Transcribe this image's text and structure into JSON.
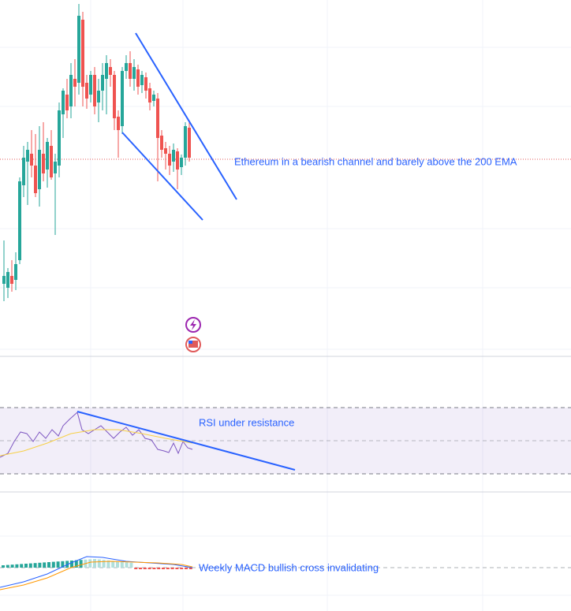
{
  "annotations": {
    "price": "Ethereum in a bearish channel and barely above the 200 EMA",
    "rsi": "RSI under resistance",
    "macd": "Weekly MACD bullish cross invalidating"
  }
}
